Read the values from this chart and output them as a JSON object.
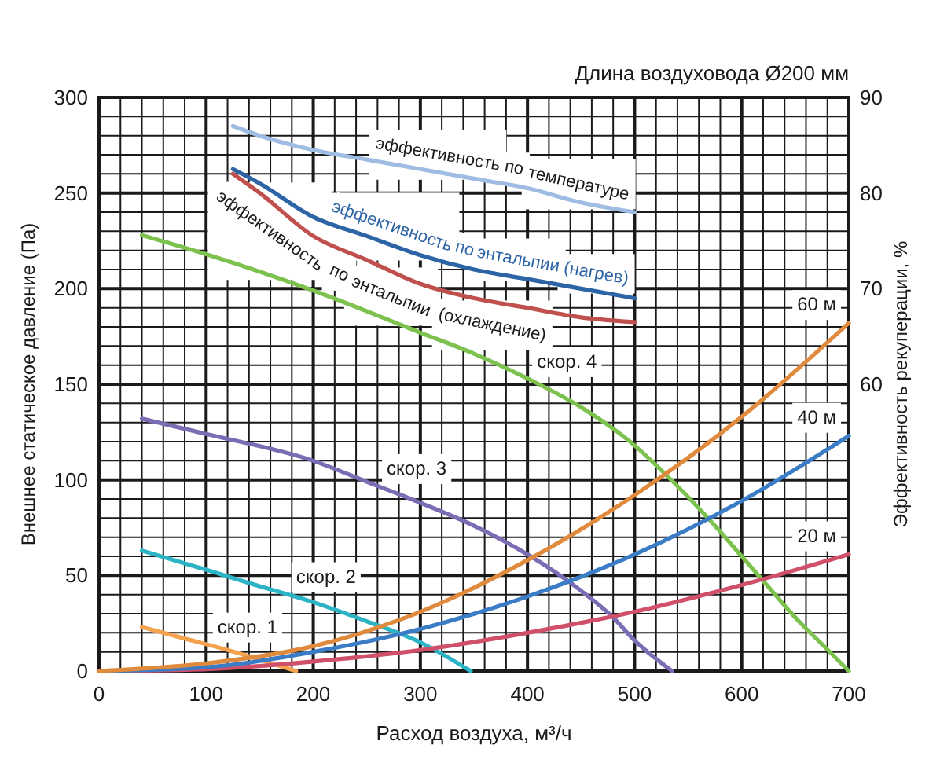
{
  "chart_data": {
    "type": "line",
    "subtitle": "Длина воздуховода Ø200 мм",
    "xlabel": "Расход воздуха, м³/ч",
    "ylabel": "Внешнее статическое давление (Па)",
    "y2label": "Эффективность рекуперации, %",
    "xlim": [
      0,
      700
    ],
    "xticks": [
      0,
      {
        "value": 20,
        "label": null
      },
      {
        "value": 40,
        "label": null
      },
      {
        "value": 60,
        "label": null
      },
      {
        "value": 80,
        "label": null
      },
      100,
      {
        "value": 120,
        "label": null
      },
      {
        "value": 140,
        "label": null
      },
      {
        "value": 160,
        "label": null
      },
      {
        "value": 180,
        "label": null
      },
      200,
      {
        "value": 220,
        "label": null
      },
      {
        "value": 240,
        "label": null
      },
      {
        "value": 260,
        "label": null
      },
      {
        "value": 280,
        "label": null
      },
      300,
      {
        "value": 320,
        "label": null
      },
      {
        "value": 340,
        "label": null
      },
      {
        "value": 360,
        "label": null
      },
      {
        "value": 380,
        "label": null
      },
      400,
      {
        "value": 420,
        "label": null
      },
      {
        "value": 440,
        "label": null
      },
      {
        "value": 460,
        "label": null
      },
      {
        "value": 480,
        "label": null
      },
      500,
      {
        "value": 520,
        "label": null
      },
      {
        "value": 540,
        "label": null
      },
      {
        "value": 560,
        "label": null
      },
      {
        "value": 580,
        "label": null
      },
      600,
      {
        "value": 620,
        "label": null
      },
      {
        "value": 640,
        "label": null
      },
      {
        "value": 660,
        "label": null
      },
      {
        "value": 680,
        "label": null
      },
      700
    ],
    "ylim": [
      0,
      300
    ],
    "yticks": [
      0,
      {
        "value": 10,
        "label": null
      },
      {
        "value": 20,
        "label": null
      },
      {
        "value": 30,
        "label": null
      },
      {
        "value": 40,
        "label": null
      },
      50,
      {
        "value": 60,
        "label": null
      },
      {
        "value": 70,
        "label": null
      },
      {
        "value": 80,
        "label": null
      },
      {
        "value": 90,
        "label": null
      },
      100,
      {
        "value": 110,
        "label": null
      },
      {
        "value": 120,
        "label": null
      },
      {
        "value": 130,
        "label": null
      },
      {
        "value": 140,
        "label": null
      },
      150,
      {
        "value": 160,
        "label": null
      },
      {
        "value": 170,
        "label": null
      },
      {
        "value": 180,
        "label": null
      },
      {
        "value": 190,
        "label": null
      },
      200,
      {
        "value": 210,
        "label": null
      },
      {
        "value": 220,
        "label": null
      },
      {
        "value": 230,
        "label": null
      },
      {
        "value": 240,
        "label": null
      },
      250,
      {
        "value": 260,
        "label": null
      },
      {
        "value": 270,
        "label": null
      },
      {
        "value": 280,
        "label": null
      },
      {
        "value": 290,
        "label": null
      },
      300
    ],
    "y2lim": [
      30,
      90
    ],
    "y2ticks": [
      60,
      70,
      80,
      90
    ],
    "grid": true,
    "series": [
      {
        "name": "эффективность по температуре",
        "color": "#9fbde3",
        "axis": "y2",
        "x": [
          125,
          150,
          200,
          250,
          300,
          350,
          400,
          450,
          500
        ],
        "values": [
          87,
          86,
          84.5,
          83.5,
          82.5,
          81.5,
          80.5,
          79,
          78
        ]
      },
      {
        "name": "эффективность по энтальпии (нагрев)",
        "color": "#2c64a6",
        "axis": "y2",
        "x": [
          125,
          150,
          200,
          250,
          300,
          350,
          400,
          450,
          500
        ],
        "values": [
          82.5,
          81,
          77.5,
          75.5,
          73.5,
          72,
          71,
          70,
          69
        ]
      },
      {
        "name": "эффективность по энтальпии (охлаждение)",
        "color": "#c0504d",
        "axis": "y2",
        "x": [
          125,
          150,
          200,
          250,
          300,
          350,
          400,
          450,
          500
        ],
        "values": [
          82,
          80,
          75.5,
          73,
          70.5,
          69,
          68,
          67,
          66.5
        ]
      },
      {
        "name": "скор. 1",
        "color": "#f5a24f",
        "x": [
          40,
          80,
          120,
          150,
          184
        ],
        "values": [
          23,
          17,
          11,
          6,
          0
        ]
      },
      {
        "name": "скор. 2",
        "color": "#2cb4c6",
        "x": [
          40,
          100,
          140,
          200,
          250,
          300,
          347
        ],
        "values": [
          63,
          53,
          46,
          36,
          26,
          15,
          0
        ]
      },
      {
        "name": "скор. 3",
        "color": "#7b6cb3",
        "x": [
          40,
          100,
          200,
          250,
          300,
          350,
          400,
          450,
          480,
          500,
          510,
          535
        ],
        "values": [
          132,
          124,
          110,
          99,
          88,
          76,
          61,
          42,
          28,
          16,
          11,
          0
        ]
      },
      {
        "name": "скор. 4",
        "color": "#7dc24f",
        "x": [
          40,
          100,
          200,
          300,
          350,
          400,
          450,
          500,
          525,
          550,
          575,
          600,
          625,
          650,
          675,
          700
        ],
        "values": [
          228,
          218,
          199,
          177,
          166,
          153,
          138,
          118,
          105,
          91,
          76,
          60,
          44,
          28,
          14,
          0
        ]
      },
      {
        "name": "20 м",
        "color": "#d0506a",
        "x": [
          0,
          100,
          200,
          300,
          400,
          500,
          600,
          700
        ],
        "values": [
          0,
          1,
          5,
          11,
          20,
          31,
          45,
          61
        ]
      },
      {
        "name": "40 м",
        "color": "#3b7cc6",
        "x": [
          0,
          100,
          200,
          300,
          400,
          500,
          600,
          700
        ],
        "values": [
          0,
          2,
          10,
          22,
          39,
          61,
          89,
          123
        ]
      },
      {
        "name": "60 м",
        "color": "#df8a3c",
        "x": [
          0,
          100,
          200,
          300,
          400,
          500,
          600,
          700
        ],
        "values": [
          0,
          4,
          13,
          31,
          58,
          92,
          133,
          182
        ]
      }
    ]
  }
}
